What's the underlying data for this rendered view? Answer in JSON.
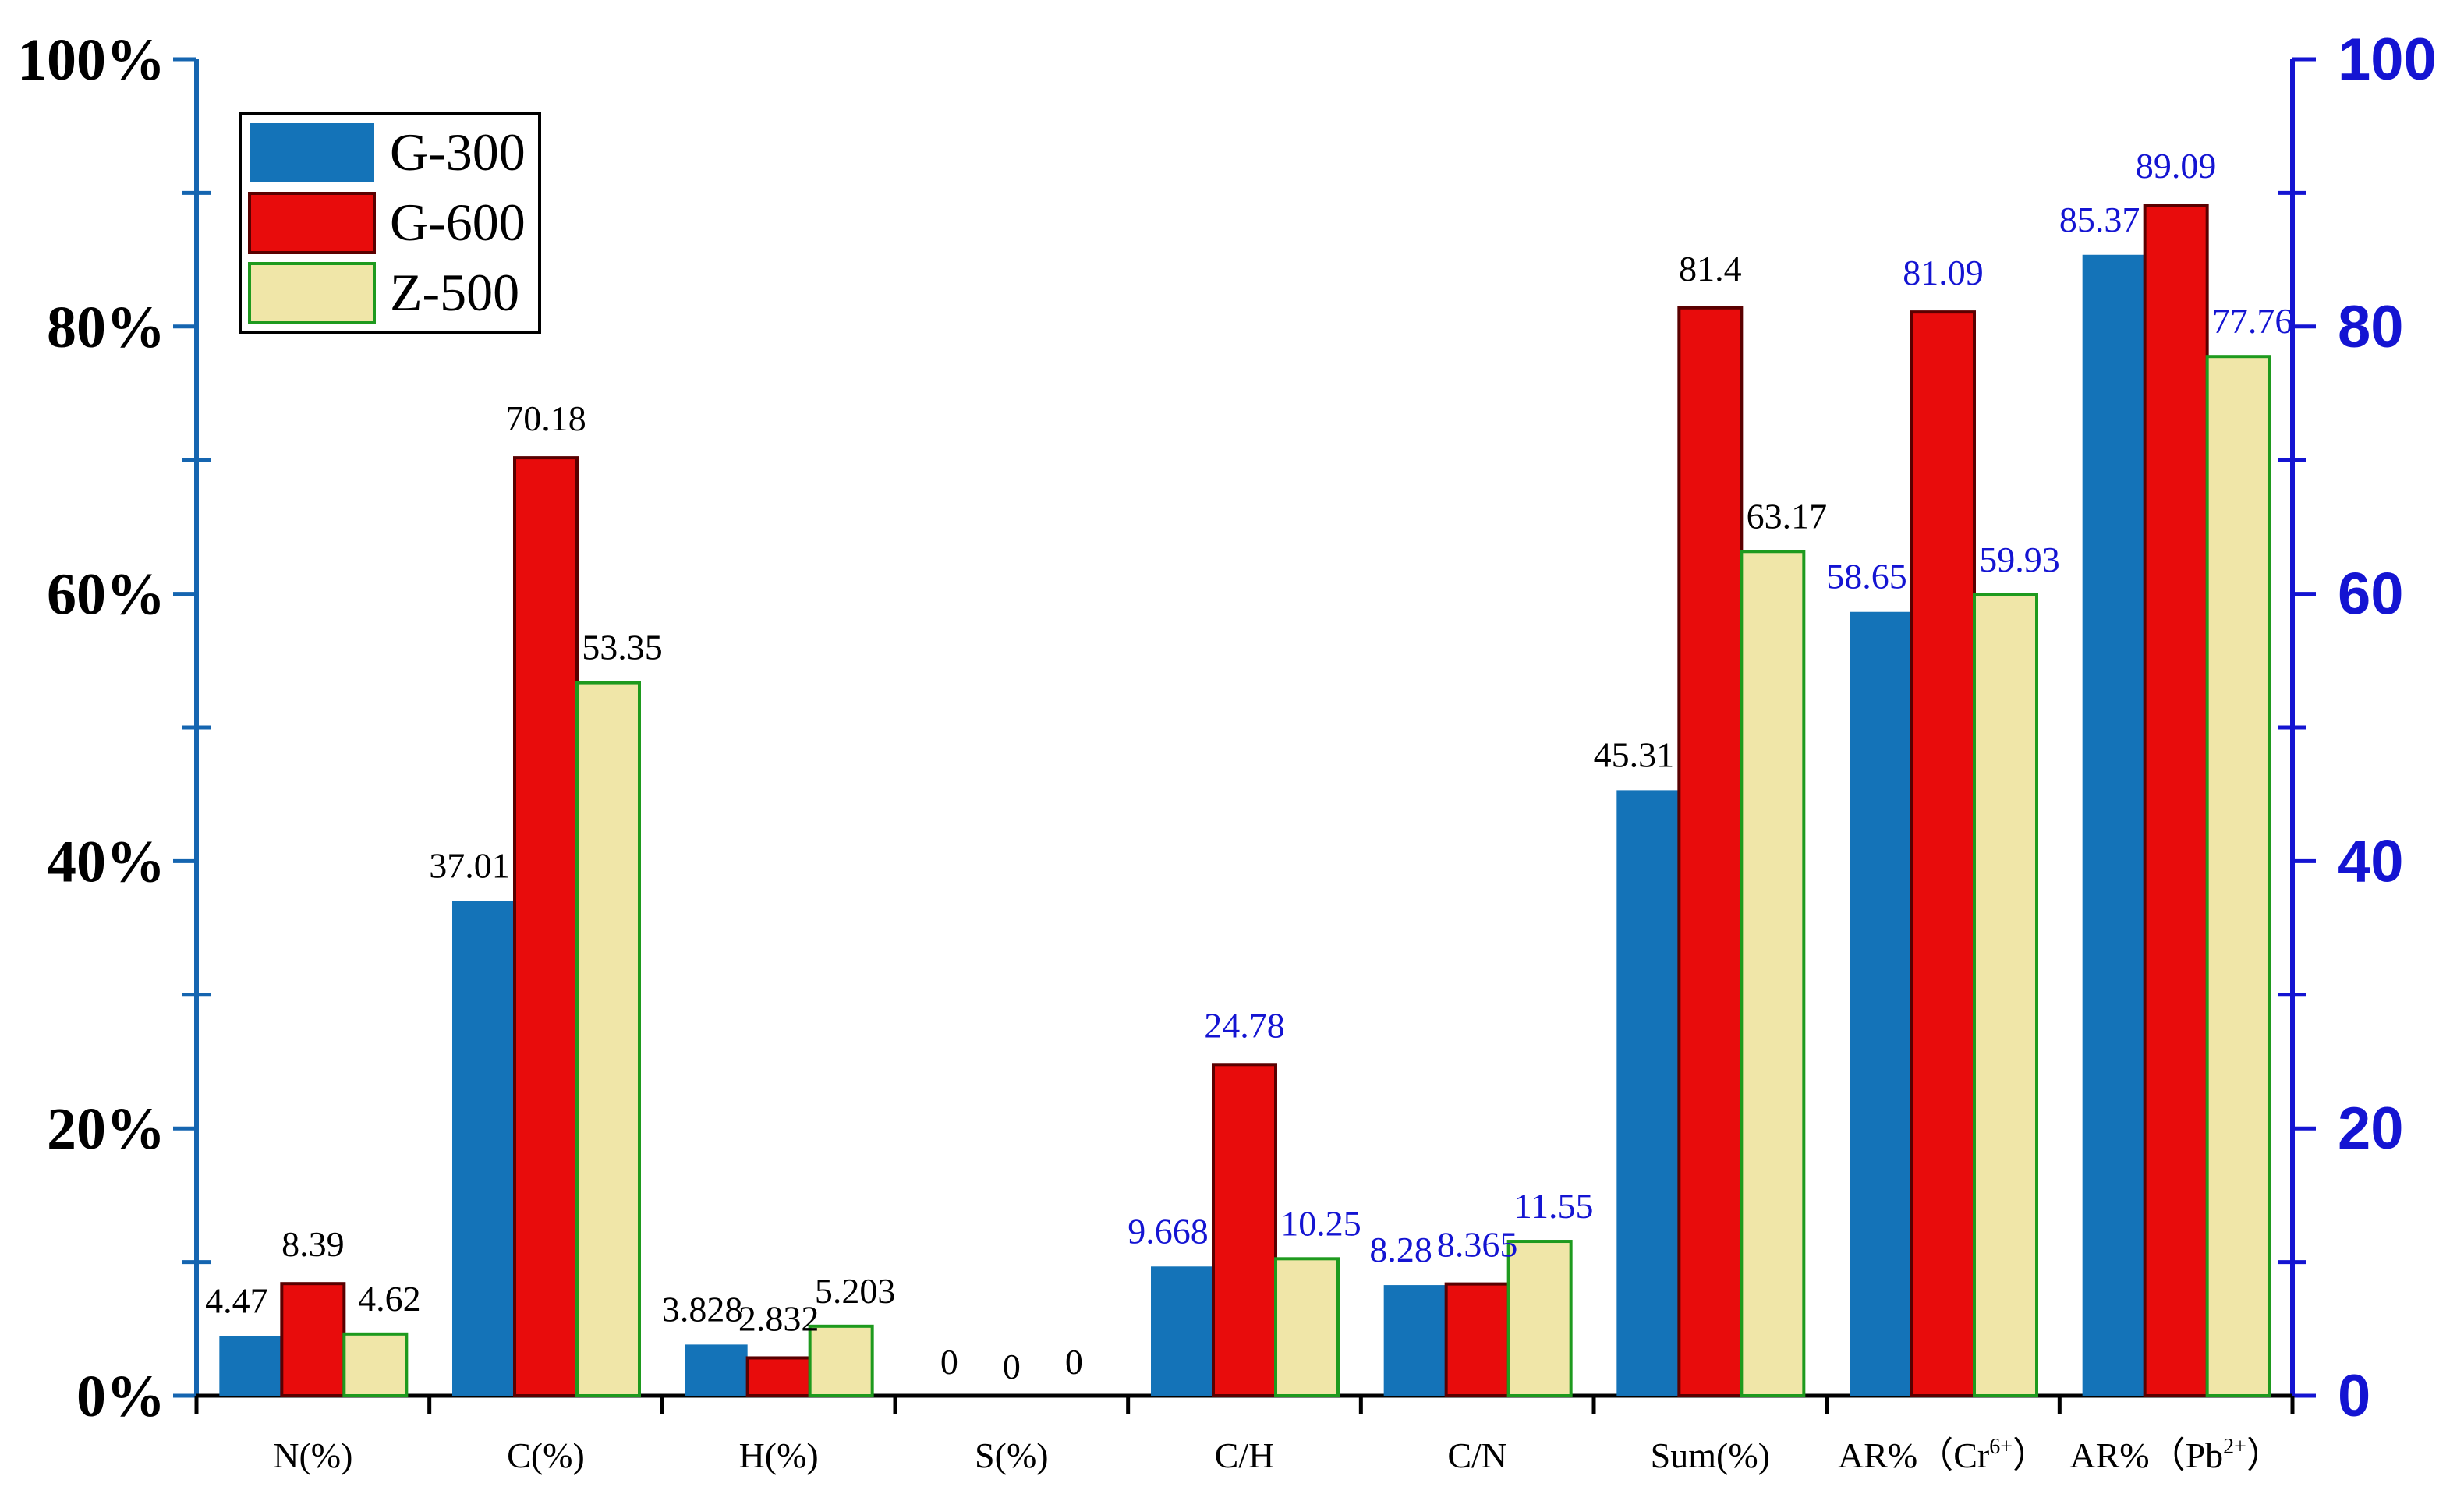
{
  "chart_data": {
    "type": "bar",
    "title": "",
    "xlabel": "",
    "ylabel_left": "",
    "ylabel_right": "",
    "ylim_left": [
      0,
      100
    ],
    "ylim_right": [
      0,
      100
    ],
    "left_ticks": [
      "0%",
      "20%",
      "40%",
      "60%",
      "80%",
      "100%"
    ],
    "right_ticks": [
      "0",
      "20",
      "40",
      "60",
      "80",
      "100"
    ],
    "categories": [
      "N(%)",
      "C(%)",
      "H(%)",
      "S(%)",
      "C/H",
      "C/N",
      "Sum(%)",
      "AR% (Cr6+)",
      "AR% (Pb2+)"
    ],
    "category_labels": [
      {
        "base": "N(%)"
      },
      {
        "base": "C(%)"
      },
      {
        "base": "H(%)"
      },
      {
        "base": "S(%)"
      },
      {
        "base": "C/H"
      },
      {
        "base": "C/N"
      },
      {
        "base": "Sum(%)"
      },
      {
        "base": "AR%（Cr",
        "sup": "6+",
        "tail": "）"
      },
      {
        "base": "AR%（Pb",
        "sup": "2+",
        "tail": "）"
      }
    ],
    "series": [
      {
        "name": "G-300",
        "color": "#1473b8",
        "stroke": "#1473b8",
        "values": [
          4.47,
          37.01,
          3.828,
          0,
          9.668,
          8.28,
          45.31,
          58.65,
          85.37
        ],
        "labels": [
          "4.47",
          "37.01",
          "3.828",
          "0",
          "9.668",
          "8.28",
          "45.31",
          "58.65",
          "85.37"
        ]
      },
      {
        "name": "G-600",
        "color": "#e80c0c",
        "stroke": "#5a0000",
        "values": [
          8.39,
          70.18,
          2.832,
          0,
          24.78,
          8.365,
          81.4,
          81.09,
          89.09
        ],
        "labels": [
          "8.39",
          "70.18",
          "2.832",
          "0",
          "24.78",
          "8.365",
          "81.4",
          "81.09",
          "89.09"
        ]
      },
      {
        "name": "Z-500",
        "color": "#f0e6a8",
        "stroke": "#1e9a1e",
        "values": [
          4.62,
          53.35,
          5.203,
          0,
          10.25,
          11.55,
          63.17,
          59.93,
          77.76
        ],
        "labels": [
          "4.62",
          "53.35",
          "5.203",
          "0",
          "10.25",
          "11.55",
          "63.17",
          "59.93",
          "77.76"
        ]
      }
    ],
    "label_colors": {
      "left_axis_values": "#000000",
      "right_axis_values": "#1414d2"
    },
    "right_axis_categories": [
      4,
      5,
      7,
      8
    ],
    "legend": {
      "placement": "top-left",
      "entries": [
        "G-300",
        "G-600",
        "Z-500"
      ]
    },
    "grid": false
  }
}
